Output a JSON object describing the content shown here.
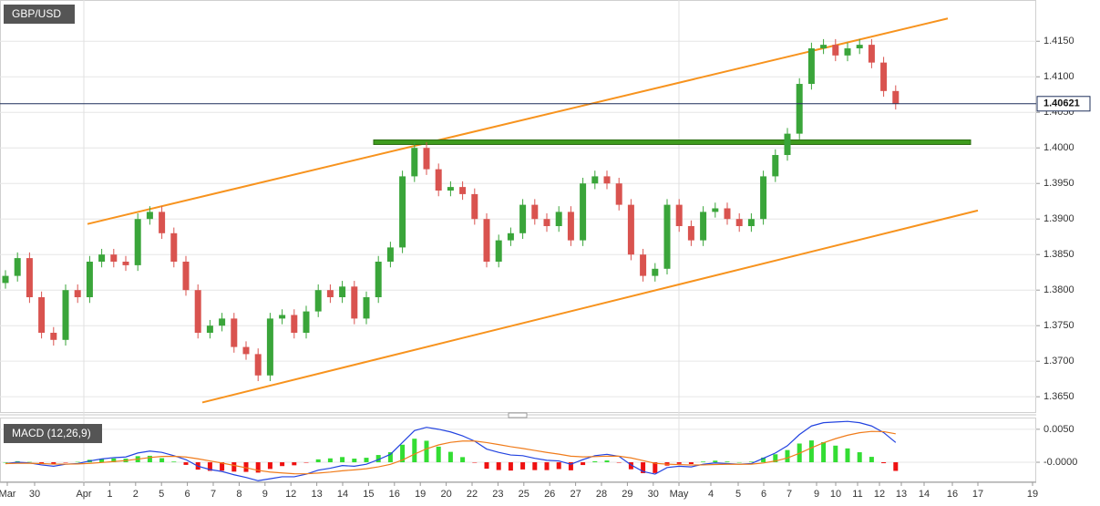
{
  "chart_data": [
    {
      "type": "candlestick",
      "title": "GBP/USD",
      "open": [
        1.381,
        1.382,
        1.3845,
        1.379,
        1.374,
        1.373,
        1.38,
        1.379,
        1.384,
        1.385,
        1.384,
        1.3835,
        1.39,
        1.391,
        1.388,
        1.384,
        1.38,
        1.374,
        1.375,
        1.376,
        1.372,
        1.371,
        1.368,
        1.376,
        1.3765,
        1.374,
        1.377,
        1.38,
        1.379,
        1.3805,
        1.376,
        1.379,
        1.384,
        1.386,
        1.396,
        1.4,
        1.397,
        1.394,
        1.3945,
        1.3935,
        1.39,
        1.384,
        1.387,
        1.388,
        1.392,
        1.39,
        1.389,
        1.391,
        1.387,
        1.395,
        1.396,
        1.395,
        1.392,
        1.385,
        1.382,
        1.383,
        1.392,
        1.389,
        1.387,
        1.391,
        1.3915,
        1.39,
        1.389,
        1.39,
        1.396,
        1.399,
        1.402,
        1.409,
        1.414,
        1.4145,
        1.413,
        1.414,
        1.4145,
        1.412,
        1.408
      ],
      "high": [
        1.3828,
        1.3853,
        1.3853,
        1.3798,
        1.3748,
        1.3808,
        1.3808,
        1.3848,
        1.3858,
        1.3858,
        1.3848,
        1.3908,
        1.3918,
        1.3918,
        1.3888,
        1.3848,
        1.3808,
        1.3758,
        1.3768,
        1.3768,
        1.3728,
        1.3718,
        1.3768,
        1.3773,
        1.3773,
        1.3778,
        1.3808,
        1.3808,
        1.3813,
        1.3813,
        1.3798,
        1.3848,
        1.3868,
        1.3968,
        1.4008,
        1.4008,
        1.3978,
        1.3953,
        1.3953,
        1.3943,
        1.3908,
        1.3878,
        1.3888,
        1.3928,
        1.3928,
        1.3908,
        1.3918,
        1.3918,
        1.3958,
        1.3968,
        1.3968,
        1.3958,
        1.3928,
        1.3858,
        1.3838,
        1.3928,
        1.3928,
        1.3898,
        1.3918,
        1.3923,
        1.3923,
        1.3908,
        1.3908,
        1.3968,
        1.3998,
        1.4028,
        1.4098,
        1.4148,
        1.4153,
        1.4153,
        1.4148,
        1.4153,
        1.4153,
        1.4128,
        1.4088
      ],
      "low": [
        1.3802,
        1.3812,
        1.3782,
        1.3732,
        1.3722,
        1.3722,
        1.3782,
        1.3782,
        1.3832,
        1.3832,
        1.3827,
        1.3827,
        1.3892,
        1.3872,
        1.3832,
        1.3792,
        1.3732,
        1.3732,
        1.3742,
        1.3712,
        1.3702,
        1.3672,
        1.3672,
        1.3752,
        1.3732,
        1.3732,
        1.3762,
        1.3782,
        1.3782,
        1.3752,
        1.3752,
        1.3782,
        1.3832,
        1.3852,
        1.3952,
        1.3962,
        1.3932,
        1.3932,
        1.3927,
        1.3892,
        1.3832,
        1.3832,
        1.3862,
        1.3872,
        1.3892,
        1.3882,
        1.3882,
        1.3862,
        1.3862,
        1.3942,
        1.3942,
        1.3912,
        1.3842,
        1.3812,
        1.3812,
        1.3822,
        1.3882,
        1.3862,
        1.3862,
        1.3902,
        1.3892,
        1.3882,
        1.3882,
        1.3892,
        1.3952,
        1.3982,
        1.4012,
        1.4082,
        1.4132,
        1.4122,
        1.4122,
        1.4132,
        1.4112,
        1.4072,
        1.4054
      ],
      "close": [
        1.382,
        1.3845,
        1.379,
        1.374,
        1.373,
        1.38,
        1.379,
        1.384,
        1.385,
        1.384,
        1.3835,
        1.39,
        1.391,
        1.388,
        1.384,
        1.38,
        1.374,
        1.375,
        1.376,
        1.372,
        1.371,
        1.368,
        1.376,
        1.3765,
        1.374,
        1.377,
        1.38,
        1.379,
        1.3805,
        1.376,
        1.379,
        1.384,
        1.386,
        1.396,
        1.4,
        1.397,
        1.394,
        1.3945,
        1.3935,
        1.39,
        1.384,
        1.387,
        1.388,
        1.392,
        1.39,
        1.389,
        1.391,
        1.387,
        1.395,
        1.396,
        1.395,
        1.392,
        1.385,
        1.382,
        1.383,
        1.392,
        1.389,
        1.387,
        1.391,
        1.3915,
        1.39,
        1.389,
        1.39,
        1.396,
        1.399,
        1.402,
        1.409,
        1.414,
        1.4145,
        1.413,
        1.414,
        1.4145,
        1.412,
        1.408,
        1.4062
      ],
      "up_color": "#3aa53a",
      "down_color": "#d9534f",
      "ylim": [
        1.3631,
        1.4208
      ],
      "yticks": [
        {
          "value": 1.365,
          "label": "1.3650"
        },
        {
          "value": 1.37,
          "label": "1.3700"
        },
        {
          "value": 1.375,
          "label": "1.3750"
        },
        {
          "value": 1.38,
          "label": "1.3800"
        },
        {
          "value": 1.385,
          "label": "1.3850"
        },
        {
          "value": 1.39,
          "label": "1.3900"
        },
        {
          "value": 1.395,
          "label": "1.3950"
        },
        {
          "value": 1.4,
          "label": "1.4000"
        },
        {
          "value": 1.405,
          "label": "1.4050"
        },
        {
          "value": 1.41,
          "label": "1.4100"
        },
        {
          "value": 1.415,
          "label": "1.4150"
        }
      ],
      "grid": true,
      "last_price": {
        "value": 1.40621,
        "label": "1.40621"
      },
      "trend_lines": [
        {
          "color": "#f7931e",
          "y": [
            1.3893,
            1.4182
          ]
        },
        {
          "color": "#f7931e",
          "y": [
            1.3642,
            1.3912
          ]
        }
      ],
      "support": {
        "color": "#3f9c1e",
        "value": 1.4008
      }
    },
    {
      "type": "macd",
      "title": "MACD (12,26,9)",
      "categories": [
        "Mar",
        "30",
        "Apr",
        "1",
        "2",
        "5",
        "6",
        "7",
        "8",
        "9",
        "12",
        "13",
        "14",
        "15",
        "16",
        "19",
        "20",
        "22",
        "23",
        "25",
        "26",
        "27",
        "28",
        "29",
        "30",
        "May",
        "4",
        "5",
        "6",
        "7",
        "9",
        "10",
        "11",
        "12",
        "13",
        "14",
        "16",
        "17",
        "19"
      ],
      "macd_line": {
        "color": "#2243e0",
        "values": [
          -0.0002,
          0,
          -0.0001,
          -0.0004,
          -0.0006,
          -0.0003,
          -0.0002,
          0.0002,
          0.0005,
          0.0007,
          0.0008,
          0.0014,
          0.0017,
          0.0015,
          0.001,
          0.0004,
          -0.0006,
          -0.0011,
          -0.0014,
          -0.0019,
          -0.0023,
          -0.0028,
          -0.0025,
          -0.0022,
          -0.0022,
          -0.0018,
          -0.0012,
          -0.0009,
          -0.0005,
          -0.0006,
          -0.0003,
          0.0004,
          0.0012,
          0.003,
          0.0048,
          0.0053,
          0.005,
          0.0046,
          0.004,
          0.0032,
          0.002,
          0.0015,
          0.0011,
          0.001,
          0.0006,
          0.0003,
          0.0002,
          -0.0003,
          0.0004,
          0.001,
          0.0012,
          0.0009,
          -0.0004,
          -0.0014,
          -0.0018,
          -0.0008,
          -0.0006,
          -0.0007,
          -0.0003,
          -0.0001,
          -0.0002,
          -0.0003,
          -0.0002,
          0.0006,
          0.0014,
          0.0025,
          0.0042,
          0.0055,
          0.006,
          0.0061,
          0.0062,
          0.006,
          0.0055,
          0.0045,
          0.003
        ]
      },
      "signal_line": {
        "color": "#f07c1b",
        "values": [
          -0.0002,
          -0.00016,
          -0.00015,
          -0.0002,
          -0.00028,
          -0.00028,
          -0.00026,
          -0.00017,
          -4e-05,
          0.00011,
          0.00025,
          0.00048,
          0.00072,
          0.00088,
          0.0009,
          0.0008,
          0.00052,
          0.0002,
          -0.00012,
          -0.00048,
          -0.00084,
          -0.00123,
          -0.00148,
          -0.00162,
          -0.00174,
          -0.00175,
          -0.00164,
          -0.00149,
          -0.00129,
          -0.00115,
          -0.00098,
          -0.0007,
          -0.00032,
          0.00034,
          0.00123,
          0.00204,
          0.00263,
          0.00302,
          0.00322,
          0.00322,
          0.00298,
          0.00268,
          0.00236,
          0.00209,
          0.00179,
          0.00149,
          0.00123,
          0.00092,
          0.00082,
          0.00086,
          0.00093,
          0.00092,
          0.00066,
          0.00025,
          -0.00016,
          -0.00029,
          -0.00035,
          -0.00042,
          -0.0004,
          -0.00034,
          -0.00031,
          -0.00031,
          -0.00029,
          -0.00011,
          0.00019,
          0.00065,
          0.00136,
          0.00219,
          0.00295,
          0.00358,
          0.0041,
          0.00448,
          0.00468,
          0.00464,
          0.00431
        ]
      },
      "histogram": {
        "up_color": "#33dd33",
        "down_color": "#ee1111",
        "values": [
          0,
          0.00016,
          5e-05,
          -0.0002,
          -0.00032,
          -2e-05,
          6e-05,
          0.00037,
          0.00054,
          0.00059,
          0.00055,
          0.00092,
          0.00098,
          0.00062,
          0.0001,
          -0.0004,
          -0.00112,
          -0.0013,
          -0.00128,
          -0.00142,
          -0.00146,
          -0.00157,
          -0.00102,
          -0.00058,
          -0.00046,
          -5e-05,
          0.00044,
          0.00059,
          0.00079,
          0.00055,
          0.00068,
          0.0011,
          0.00152,
          0.00266,
          0.00357,
          0.00326,
          0.00237,
          0.00158,
          0.00078,
          -2e-05,
          -0.00098,
          -0.00118,
          -0.00126,
          -0.00109,
          -0.00119,
          -0.00119,
          -0.00103,
          -0.00122,
          -0.00042,
          0.00014,
          0.00027,
          -2e-05,
          -0.00106,
          -0.00165,
          -0.00164,
          -0.00051,
          -0.00025,
          -0.00028,
          0.0001,
          0.00024,
          0.00011,
          1e-05,
          9e-05,
          0.00071,
          0.00121,
          0.00185,
          0.00284,
          0.00331,
          0.00305,
          0.00252,
          0.0021,
          0.00152,
          0.00082,
          -0.00014,
          -0.00131
        ]
      },
      "ylim": [
        -0.0029,
        0.0065
      ],
      "yticks": [
        {
          "value": 0.005,
          "label": "0.0050"
        },
        {
          "value": 0,
          "label": "-0.0000"
        }
      ],
      "grid": true
    }
  ]
}
